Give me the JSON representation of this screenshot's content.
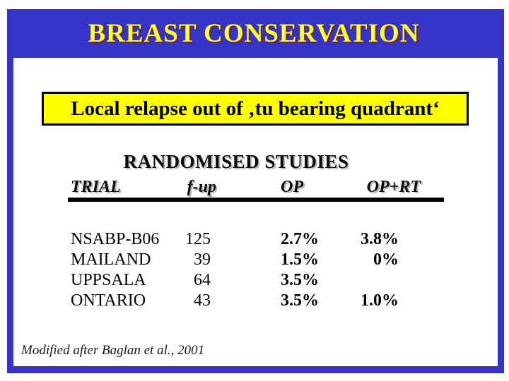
{
  "slide": {
    "title": "BREAST CONSERVATION",
    "highlight_box": "Local relapse out of ‚tu bearing quadrant‘",
    "section_heading": "RANDOMISED STUDIES",
    "caption": "Modified after Baglan et al., 2001",
    "colors": {
      "frame_blue": "#3533c8",
      "title_yellow": "#ffff33",
      "highlight_yellow": "#ffff00",
      "text_black": "#000000"
    }
  },
  "table": {
    "columns": [
      "TRIAL",
      "f-up",
      "OP",
      "OP+RT"
    ],
    "rows": [
      {
        "trial": "NSABP-B06",
        "f_up": "125",
        "op": "2.7%",
        "op_rt": "3.8%"
      },
      {
        "trial": "MAILAND",
        "f_up": "39",
        "op": "1.5%",
        "op_rt": "0%"
      },
      {
        "trial": "UPPSALA",
        "f_up": "64",
        "op": "3.5%",
        "op_rt": ""
      },
      {
        "trial": "ONTARIO",
        "f_up": "43",
        "op": "3.5%",
        "op_rt": "1.0%"
      }
    ]
  }
}
